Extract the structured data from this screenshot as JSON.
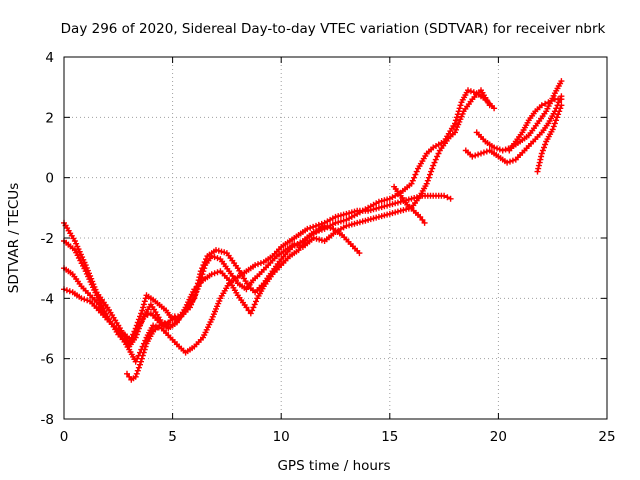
{
  "chart_data": {
    "type": "scatter",
    "title": "Day 296 of 2020, Sidereal Day-to-day VTEC variation (SDTVAR) for receiver nbrk",
    "xlabel": "GPS time / hours",
    "ylabel": "SDTVAR / TECUs",
    "xlim": [
      0,
      25
    ],
    "ylim": [
      -8,
      4
    ],
    "xticks": [
      0,
      5,
      10,
      15,
      20,
      25
    ],
    "yticks": [
      -8,
      -6,
      -4,
      -2,
      0,
      2,
      4
    ],
    "xtick_labels": [
      "0",
      "5",
      "10",
      "15",
      "20",
      "25"
    ],
    "ytick_labels": [
      "-8",
      "-6",
      "-4",
      "-2",
      "0",
      "2",
      "4"
    ],
    "grid": true,
    "marker": "+",
    "color": "#ff0000",
    "series": [
      {
        "name": "trace-1",
        "points": [
          [
            0.0,
            -1.5
          ],
          [
            0.5,
            -2.1
          ],
          [
            1.0,
            -2.9
          ],
          [
            1.5,
            -3.8
          ],
          [
            2.0,
            -4.3
          ],
          [
            2.5,
            -4.9
          ],
          [
            3.0,
            -5.5
          ],
          [
            3.3,
            -5.0
          ],
          [
            3.6,
            -4.4
          ],
          [
            3.8,
            -3.9
          ],
          [
            4.2,
            -4.1
          ],
          [
            4.7,
            -4.4
          ],
          [
            5.0,
            -4.7
          ],
          [
            5.5,
            -4.5
          ],
          [
            6.0,
            -4.0
          ],
          [
            6.3,
            -3.1
          ],
          [
            6.6,
            -2.6
          ],
          [
            7.0,
            -2.4
          ],
          [
            7.5,
            -2.5
          ],
          [
            8.0,
            -3.0
          ],
          [
            8.5,
            -3.6
          ],
          [
            8.8,
            -3.8
          ],
          [
            9.2,
            -3.5
          ],
          [
            9.6,
            -3.1
          ],
          [
            10.0,
            -2.7
          ],
          [
            10.5,
            -2.3
          ],
          [
            11.0,
            -2.1
          ],
          [
            11.5,
            -1.8
          ],
          [
            12.0,
            -1.7
          ],
          [
            12.5,
            -1.5
          ],
          [
            13.0,
            -1.4
          ],
          [
            13.5,
            -1.2
          ],
          [
            14.0,
            -1.0
          ],
          [
            14.5,
            -0.8
          ],
          [
            15.0,
            -0.7
          ],
          [
            15.5,
            -0.5
          ],
          [
            16.0,
            -0.2
          ],
          [
            16.3,
            0.3
          ],
          [
            16.7,
            0.8
          ],
          [
            17.0,
            1.0
          ],
          [
            17.5,
            1.2
          ],
          [
            18.0,
            1.8
          ],
          [
            18.3,
            2.5
          ],
          [
            18.6,
            2.9
          ],
          [
            19.0,
            2.8
          ],
          [
            19.4,
            2.6
          ],
          [
            19.8,
            2.3
          ]
        ]
      },
      {
        "name": "trace-2",
        "points": [
          [
            0.0,
            -2.1
          ],
          [
            0.5,
            -2.4
          ],
          [
            1.0,
            -3.1
          ],
          [
            1.5,
            -3.9
          ],
          [
            2.0,
            -4.6
          ],
          [
            2.5,
            -5.2
          ],
          [
            3.0,
            -5.6
          ],
          [
            3.3,
            -5.3
          ],
          [
            3.6,
            -4.7
          ],
          [
            4.0,
            -4.2
          ],
          [
            4.5,
            -4.8
          ],
          [
            5.0,
            -4.9
          ],
          [
            5.4,
            -4.6
          ],
          [
            5.8,
            -4.3
          ],
          [
            6.2,
            -3.6
          ],
          [
            6.5,
            -2.9
          ],
          [
            6.8,
            -2.6
          ],
          [
            7.2,
            -2.7
          ],
          [
            7.6,
            -3.1
          ],
          [
            8.0,
            -3.5
          ],
          [
            8.4,
            -3.7
          ],
          [
            8.7,
            -3.4
          ],
          [
            9.0,
            -3.2
          ],
          [
            9.4,
            -2.9
          ],
          [
            9.8,
            -2.6
          ],
          [
            10.2,
            -2.4
          ],
          [
            10.6,
            -2.2
          ],
          [
            11.0,
            -2.3
          ],
          [
            11.5,
            -2.0
          ],
          [
            12.0,
            -2.1
          ],
          [
            12.5,
            -1.8
          ],
          [
            13.0,
            -1.6
          ],
          [
            13.5,
            -1.5
          ],
          [
            14.0,
            -1.4
          ],
          [
            14.5,
            -1.3
          ],
          [
            15.0,
            -1.2
          ],
          [
            15.5,
            -1.1
          ],
          [
            16.0,
            -1.0
          ],
          [
            16.4,
            -0.6
          ],
          [
            16.7,
            -0.2
          ],
          [
            17.0,
            0.4
          ],
          [
            17.3,
            0.9
          ],
          [
            17.7,
            1.3
          ],
          [
            18.0,
            1.5
          ],
          [
            18.4,
            2.2
          ],
          [
            18.8,
            2.6
          ],
          [
            19.2,
            2.9
          ],
          [
            19.6,
            2.4
          ]
        ]
      },
      {
        "name": "trace-3",
        "points": [
          [
            0.0,
            -3.0
          ],
          [
            0.4,
            -3.2
          ],
          [
            0.8,
            -3.6
          ],
          [
            1.2,
            -3.9
          ],
          [
            1.6,
            -4.2
          ],
          [
            2.0,
            -4.7
          ],
          [
            2.4,
            -5.0
          ],
          [
            2.8,
            -5.2
          ],
          [
            3.1,
            -5.4
          ],
          [
            3.4,
            -5.0
          ],
          [
            3.7,
            -4.6
          ],
          [
            4.0,
            -4.5
          ],
          [
            4.4,
            -4.8
          ],
          [
            4.8,
            -5.0
          ],
          [
            5.2,
            -4.8
          ],
          [
            5.6,
            -4.3
          ],
          [
            6.0,
            -3.7
          ],
          [
            6.4,
            -3.4
          ],
          [
            6.8,
            -3.2
          ],
          [
            7.2,
            -3.1
          ],
          [
            7.6,
            -3.4
          ],
          [
            8.0,
            -3.9
          ],
          [
            8.4,
            -4.3
          ],
          [
            8.6,
            -4.5
          ],
          [
            8.9,
            -4.0
          ],
          [
            9.2,
            -3.6
          ],
          [
            9.6,
            -3.2
          ],
          [
            10.0,
            -2.9
          ],
          [
            10.4,
            -2.6
          ],
          [
            10.8,
            -2.4
          ],
          [
            11.2,
            -2.0
          ],
          [
            11.6,
            -1.8
          ],
          [
            12.0,
            -1.6
          ],
          [
            12.4,
            -1.7
          ],
          [
            12.8,
            -1.9
          ],
          [
            13.2,
            -2.2
          ],
          [
            13.6,
            -2.5
          ]
        ]
      },
      {
        "name": "trace-4",
        "points": [
          [
            0.0,
            -3.7
          ],
          [
            0.4,
            -3.8
          ],
          [
            0.8,
            -4.0
          ],
          [
            1.2,
            -4.1
          ],
          [
            1.6,
            -4.4
          ],
          [
            2.0,
            -4.7
          ],
          [
            2.5,
            -5.1
          ],
          [
            3.0,
            -5.7
          ],
          [
            3.3,
            -6.1
          ],
          [
            3.5,
            -5.8
          ],
          [
            3.8,
            -5.3
          ],
          [
            4.1,
            -4.9
          ],
          [
            4.5,
            -5.0
          ],
          [
            4.9,
            -5.3
          ],
          [
            5.3,
            -5.6
          ],
          [
            5.6,
            -5.8
          ],
          [
            6.0,
            -5.6
          ],
          [
            6.4,
            -5.3
          ],
          [
            6.8,
            -4.7
          ],
          [
            7.2,
            -4.0
          ],
          [
            7.6,
            -3.5
          ],
          [
            8.0,
            -3.3
          ],
          [
            8.4,
            -3.1
          ],
          [
            8.8,
            -2.9
          ],
          [
            9.2,
            -2.8
          ],
          [
            9.6,
            -2.6
          ],
          [
            10.0,
            -2.3
          ],
          [
            10.4,
            -2.1
          ],
          [
            10.8,
            -1.9
          ],
          [
            11.2,
            -1.7
          ],
          [
            11.6,
            -1.6
          ],
          [
            12.0,
            -1.5
          ],
          [
            12.5,
            -1.3
          ],
          [
            13.0,
            -1.2
          ],
          [
            13.5,
            -1.1
          ],
          [
            14.0,
            -1.1
          ],
          [
            14.5,
            -1.0
          ],
          [
            15.0,
            -0.9
          ],
          [
            15.5,
            -0.8
          ],
          [
            16.0,
            -0.7
          ],
          [
            16.5,
            -0.6
          ],
          [
            17.0,
            -0.6
          ],
          [
            17.5,
            -0.6
          ],
          [
            17.8,
            -0.7
          ]
        ]
      },
      {
        "name": "trace-5",
        "points": [
          [
            2.9,
            -6.5
          ],
          [
            3.1,
            -6.7
          ],
          [
            3.3,
            -6.6
          ],
          [
            3.5,
            -6.2
          ],
          [
            3.8,
            -5.5
          ],
          [
            4.1,
            -5.1
          ],
          [
            4.4,
            -4.9
          ],
          [
            4.8,
            -4.8
          ],
          [
            5.1,
            -4.6
          ]
        ]
      },
      {
        "name": "trace-6",
        "points": [
          [
            18.5,
            0.9
          ],
          [
            18.8,
            0.7
          ],
          [
            19.2,
            0.8
          ],
          [
            19.6,
            0.9
          ],
          [
            20.0,
            0.7
          ],
          [
            20.4,
            0.5
          ],
          [
            20.8,
            0.6
          ],
          [
            21.2,
            0.9
          ],
          [
            21.6,
            1.2
          ],
          [
            22.0,
            1.5
          ],
          [
            22.3,
            1.8
          ],
          [
            22.6,
            2.2
          ],
          [
            22.9,
            2.7
          ]
        ]
      },
      {
        "name": "trace-7",
        "points": [
          [
            19.0,
            1.5
          ],
          [
            19.4,
            1.2
          ],
          [
            19.8,
            1.0
          ],
          [
            20.2,
            0.9
          ],
          [
            20.6,
            1.0
          ],
          [
            21.0,
            1.2
          ],
          [
            21.4,
            1.4
          ],
          [
            21.8,
            1.8
          ],
          [
            22.2,
            2.2
          ],
          [
            22.6,
            2.8
          ],
          [
            22.9,
            3.2
          ]
        ]
      },
      {
        "name": "trace-8",
        "points": [
          [
            20.5,
            0.9
          ],
          [
            20.8,
            1.2
          ],
          [
            21.1,
            1.5
          ],
          [
            21.4,
            1.9
          ],
          [
            21.7,
            2.2
          ],
          [
            22.0,
            2.4
          ],
          [
            22.3,
            2.5
          ],
          [
            22.6,
            2.6
          ],
          [
            22.9,
            2.6
          ]
        ]
      },
      {
        "name": "trace-9",
        "points": [
          [
            21.8,
            0.2
          ],
          [
            22.0,
            0.8
          ],
          [
            22.2,
            1.2
          ],
          [
            22.5,
            1.6
          ],
          [
            22.7,
            2.0
          ],
          [
            22.9,
            2.4
          ]
        ]
      },
      {
        "name": "trace-10",
        "points": [
          [
            15.2,
            -0.3
          ],
          [
            15.5,
            -0.6
          ],
          [
            15.8,
            -0.9
          ],
          [
            16.1,
            -1.1
          ],
          [
            16.4,
            -1.3
          ],
          [
            16.6,
            -1.5
          ]
        ]
      }
    ]
  }
}
